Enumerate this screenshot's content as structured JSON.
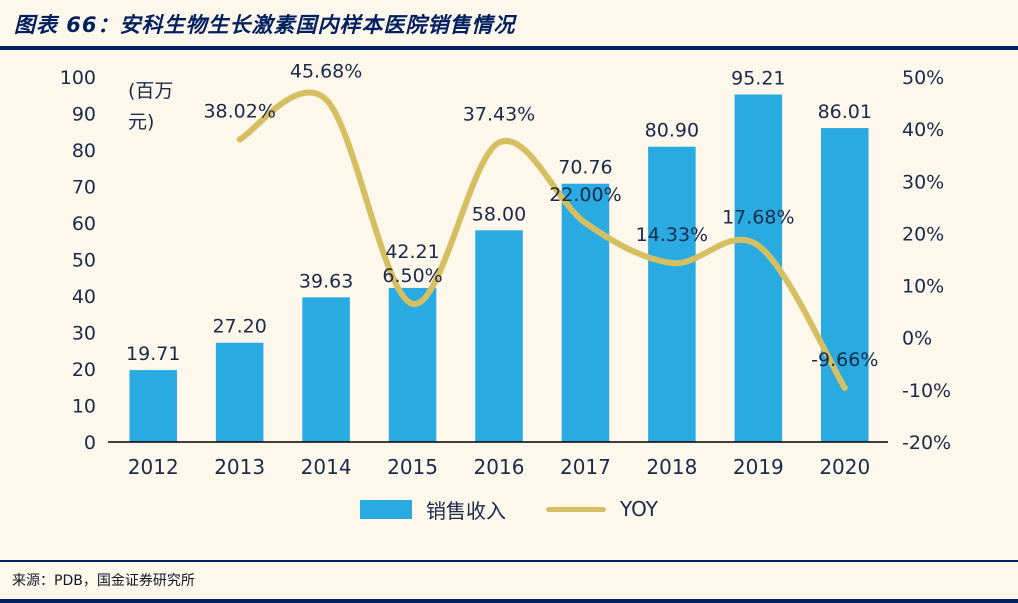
{
  "header": {
    "title": "图表 66：安科生物生长激素国内样本医院销售情况"
  },
  "legend": {
    "bar_label": "销售收入",
    "line_label": "YOY"
  },
  "footer": {
    "source": "来源：PDB，国金证券研究所"
  },
  "colors": {
    "background": "#FEF8EC",
    "accent_navy": "#002060",
    "bar": "#29ABE2",
    "line": "#D6BF60",
    "text": "#1A2A4A"
  },
  "chart_data": {
    "type": "combo",
    "categories": [
      "2012",
      "2013",
      "2014",
      "2015",
      "2016",
      "2017",
      "2018",
      "2019",
      "2020"
    ],
    "series": [
      {
        "name": "销售收入",
        "type": "bar",
        "axis": "left",
        "color": "#29ABE2",
        "values": [
          19.71,
          27.2,
          39.63,
          42.21,
          58.0,
          70.76,
          80.9,
          95.21,
          86.01
        ],
        "labels": [
          "19.71",
          "27.20",
          "39.63",
          "42.21",
          "58.00",
          "70.76",
          "80.90",
          "95.21",
          "86.01"
        ]
      },
      {
        "name": "YOY",
        "type": "line",
        "axis": "right",
        "color": "#D6BF60",
        "values": [
          null,
          38.02,
          45.68,
          6.5,
          37.43,
          22.0,
          14.33,
          17.68,
          -9.66
        ],
        "labels": [
          null,
          "38.02%",
          "45.68%",
          "6.50%",
          "37.43%",
          "22.00%",
          "14.33%",
          "17.68%",
          "-9.66%"
        ]
      }
    ],
    "left_axis": {
      "min": 0,
      "max": 100,
      "step": 10,
      "tick_labels": [
        "0",
        "10",
        "20",
        "30",
        "40",
        "50",
        "60",
        "70",
        "80",
        "90",
        "100"
      ]
    },
    "right_axis": {
      "min": -20,
      "max": 50,
      "step": 10,
      "tick_labels": [
        "-20%",
        "-10%",
        "0%",
        "10%",
        "20%",
        "30%",
        "40%",
        "50%"
      ]
    },
    "unit_label_lines": [
      "(百万",
      "元)"
    ],
    "grid": false,
    "legend_position": "bottom"
  }
}
